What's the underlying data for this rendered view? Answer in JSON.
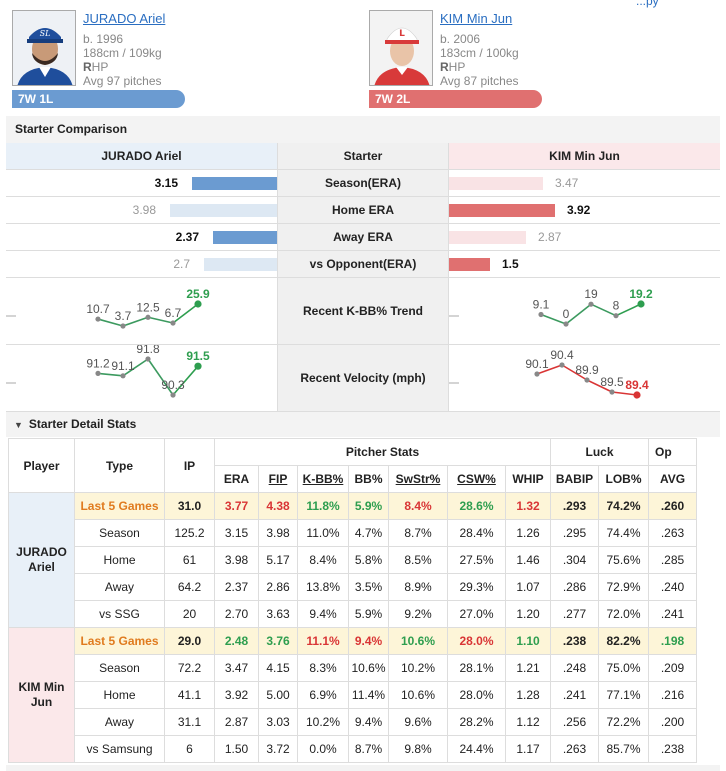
{
  "corner_link": "...py",
  "players": [
    {
      "name": "JURADO Ariel",
      "born": "b. 1996",
      "size": "188cm / 109kg",
      "hand_bold": "R",
      "hand_rest": "HP",
      "avg_pitches": "Avg 97 pitches",
      "record": "7W 1L",
      "team_initials": "SL"
    },
    {
      "name": "KIM Min Jun",
      "born": "b. 2006",
      "size": "183cm / 100kg",
      "hand_bold": "R",
      "hand_rest": "HP",
      "avg_pitches": "Avg 87 pitches",
      "record": "7W 2L",
      "team_initials": "L"
    }
  ],
  "comparison": {
    "title": "Starter Comparison",
    "left_header": "JURADO Ariel",
    "mid_header": "Starter",
    "right_header": "KIM Min Jun",
    "rows": [
      {
        "label": "Season(ERA)",
        "left": 3.15,
        "right": 3.47,
        "left_label": "3.15",
        "right_label": "3.47",
        "winner": "left"
      },
      {
        "label": "Home ERA",
        "left": 3.98,
        "right": 3.92,
        "left_label": "3.98",
        "right_label": "3.92",
        "winner": "right"
      },
      {
        "label": "Away ERA",
        "left": 2.37,
        "right": 2.87,
        "left_label": "2.37",
        "right_label": "2.87",
        "winner": "left"
      },
      {
        "label": "vs Opponent(ERA)",
        "left": 2.7,
        "right": 1.5,
        "left_label": "2.7",
        "right_label": "1.5",
        "winner": "right"
      }
    ],
    "trend_label": "Recent K-BB% Trend",
    "velocity_label": "Recent Velocity (mph)",
    "kbb_left": [
      10.7,
      3.7,
      12.5,
      6.7,
      25.9
    ],
    "kbb_left_labels": [
      "10.7",
      "3.7",
      "12.5",
      "6.7",
      "25.9"
    ],
    "kbb_right": [
      9.1,
      0,
      19,
      8,
      19.2
    ],
    "kbb_right_labels": [
      "9.1",
      "0",
      "19",
      "8",
      "19.2"
    ],
    "velo_left": [
      91.2,
      91.1,
      91.8,
      90.3,
      91.5
    ],
    "velo_left_labels": [
      "91.2",
      "91.1",
      "91.8",
      "90.3",
      "91.5"
    ],
    "velo_right": [
      90.1,
      90.4,
      89.9,
      89.5,
      89.4
    ],
    "velo_right_labels": [
      "90.1",
      "90.4",
      "89.9",
      "89.5",
      "89.4"
    ],
    "colors": {
      "blue_bar": "#6b9bd1",
      "blue_light": "#dde8f3",
      "red_bar": "#e07070",
      "red_light": "#f9e3e5",
      "green_line": "#2e9e4f",
      "red_line": "#d93535"
    }
  },
  "detail": {
    "title": "Starter Detail Stats",
    "headers": {
      "player": "Player",
      "type": "Type",
      "ip": "IP",
      "group_pitcher": "Pitcher Stats",
      "group_luck": "Luck",
      "group_op": "Op",
      "cols": [
        "ERA",
        "FIP",
        "K-BB%",
        "BB%",
        "SwStr%",
        "CSW%",
        "WHIP",
        "BABIP",
        "LOB%",
        "AVG"
      ]
    },
    "groups": [
      {
        "player": "JURADO Ariel",
        "rows": [
          {
            "type": "Last 5 Games",
            "ip": "31.0",
            "vals": [
              "3.77",
              "4.38",
              "11.8%",
              "5.9%",
              "8.4%",
              "28.6%",
              "1.32",
              ".293",
              "74.2%",
              ".260"
            ],
            "cls": [
              "bad",
              "bad",
              "good",
              "good",
              "bad",
              "good",
              "bad",
              "",
              "",
              ""
            ]
          },
          {
            "type": "Season",
            "ip": "125.2",
            "vals": [
              "3.15",
              "3.98",
              "11.0%",
              "4.7%",
              "8.7%",
              "28.4%",
              "1.26",
              ".295",
              "74.4%",
              ".263"
            ]
          },
          {
            "type": "Home",
            "ip": "61",
            "vals": [
              "3.98",
              "5.17",
              "8.4%",
              "5.8%",
              "8.5%",
              "27.5%",
              "1.46",
              ".304",
              "75.6%",
              ".285"
            ]
          },
          {
            "type": "Away",
            "ip": "64.2",
            "vals": [
              "2.37",
              "2.86",
              "13.8%",
              "3.5%",
              "8.9%",
              "29.3%",
              "1.07",
              ".286",
              "72.9%",
              ".240"
            ]
          },
          {
            "type": "vs SSG",
            "ip": "20",
            "vals": [
              "2.70",
              "3.63",
              "9.4%",
              "5.9%",
              "9.2%",
              "27.0%",
              "1.20",
              ".277",
              "72.0%",
              ".241"
            ]
          }
        ]
      },
      {
        "player": "KIM Min Jun",
        "rows": [
          {
            "type": "Last 5 Games",
            "ip": "29.0",
            "vals": [
              "2.48",
              "3.76",
              "11.1%",
              "9.4%",
              "10.6%",
              "28.0%",
              "1.10",
              ".238",
              "82.2%",
              ".198"
            ],
            "cls": [
              "good",
              "good",
              "bad",
              "bad",
              "good",
              "bad",
              "good",
              "",
              "",
              "good"
            ]
          },
          {
            "type": "Season",
            "ip": "72.2",
            "vals": [
              "3.47",
              "4.15",
              "8.3%",
              "10.6%",
              "10.2%",
              "28.1%",
              "1.21",
              ".248",
              "75.0%",
              ".209"
            ]
          },
          {
            "type": "Home",
            "ip": "41.1",
            "vals": [
              "3.92",
              "5.00",
              "6.9%",
              "11.4%",
              "10.6%",
              "28.0%",
              "1.28",
              ".241",
              "77.1%",
              ".216"
            ]
          },
          {
            "type": "Away",
            "ip": "31.1",
            "vals": [
              "2.87",
              "3.03",
              "10.2%",
              "9.4%",
              "9.6%",
              "28.2%",
              "1.12",
              ".256",
              "72.2%",
              ".200"
            ]
          },
          {
            "type": "vs Samsung",
            "ip": "6",
            "vals": [
              "1.50",
              "3.72",
              "0.0%",
              "8.7%",
              "9.8%",
              "24.4%",
              "1.17",
              ".263",
              "85.7%",
              ".238"
            ]
          }
        ]
      }
    ]
  }
}
